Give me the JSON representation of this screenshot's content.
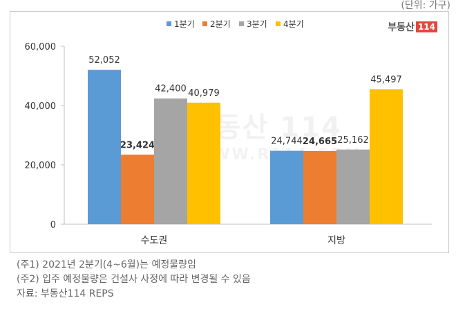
{
  "unit_label": "(단위: 가구)",
  "brand": {
    "text": "부동산",
    "box": "114"
  },
  "watermark": {
    "logo": "부동산 114",
    "url": "WWW.R114.COM"
  },
  "colors": {
    "q1": "#5b9bd5",
    "q2": "#ed7d31",
    "q3": "#a5a5a5",
    "q4": "#ffc000",
    "brand_red": "#e2473d"
  },
  "chart_data": {
    "type": "bar",
    "categories": [
      "수도권",
      "지방"
    ],
    "series": [
      {
        "name": "1분기",
        "values": [
          52052,
          24744
        ]
      },
      {
        "name": "2분기",
        "values": [
          23424,
          24665
        ]
      },
      {
        "name": "3분기",
        "values": [
          42400,
          25162
        ]
      },
      {
        "name": "4분기",
        "values": [
          40979,
          45497
        ]
      }
    ],
    "value_labels": [
      [
        "52,052",
        "24,744"
      ],
      [
        "23,424",
        "24,665"
      ],
      [
        "42,400",
        "25,162"
      ],
      [
        "40,979",
        "45,497"
      ]
    ],
    "y_ticks": [
      "0",
      "20,000",
      "40,000",
      "60,000"
    ],
    "y_tick_values": [
      0,
      20000,
      40000,
      60000
    ],
    "ylim": [
      0,
      60000
    ],
    "grid": false,
    "legend_position": "top-center",
    "title": "",
    "xlabel": "",
    "ylabel": ""
  },
  "notes": [
    "(주1) 2021년 2분기(4~6월)는 예정물량임",
    "(주2) 입주 예정물량은 건설사 사정에 따라 변경될 수 있음",
    "자료: 부동산114 REPS"
  ]
}
